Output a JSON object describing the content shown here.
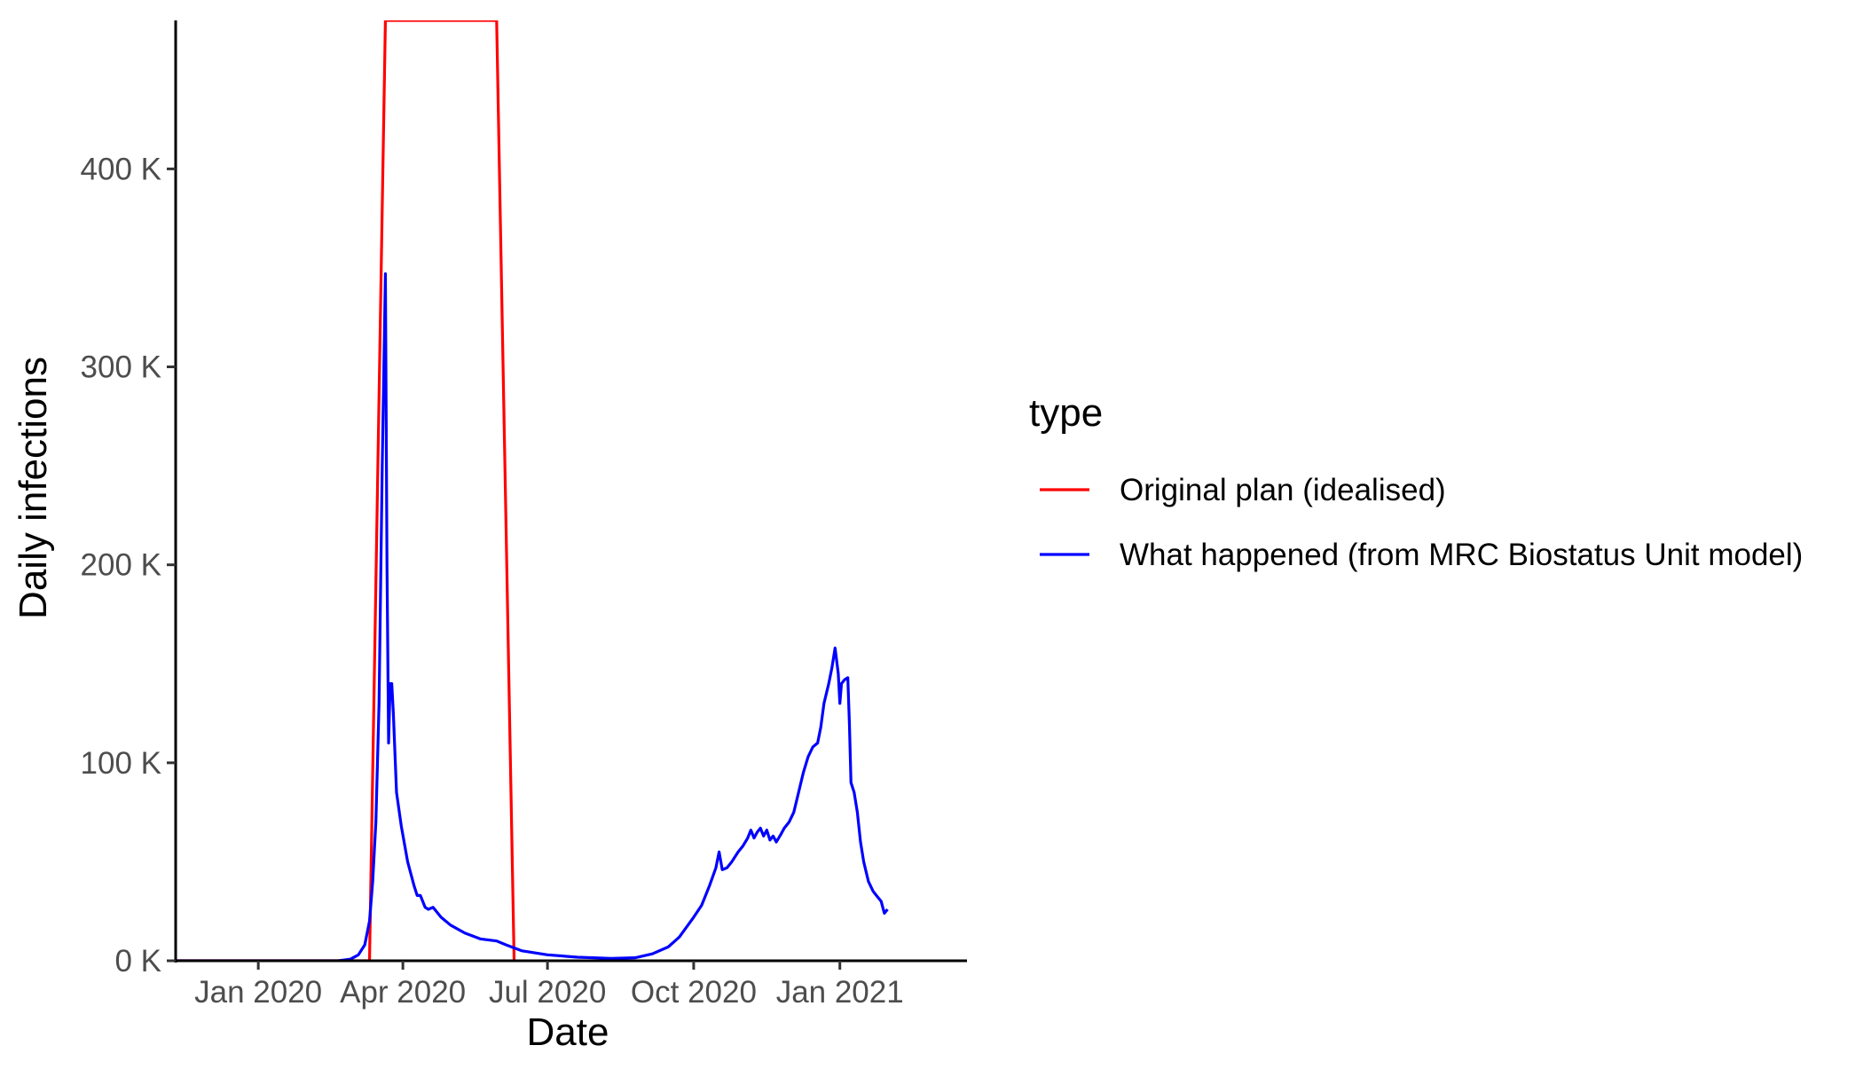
{
  "chart_data": {
    "type": "line",
    "xlabel": "Date",
    "ylabel": "Daily infections",
    "x_axis": {
      "kind": "date",
      "range": [
        "2019-11-10",
        "2021-03-22"
      ],
      "ticks": [
        {
          "date": "2020-01-01",
          "label": "Jan 2020"
        },
        {
          "date": "2020-04-01",
          "label": "Apr 2020"
        },
        {
          "date": "2020-07-01",
          "label": "Jul 2020"
        },
        {
          "date": "2020-10-01",
          "label": "Oct 2020"
        },
        {
          "date": "2021-01-01",
          "label": "Jan 2021"
        }
      ]
    },
    "y_axis": {
      "range": [
        0,
        475000
      ],
      "ticks": [
        {
          "value": 0,
          "label": "0 K"
        },
        {
          "value": 100000,
          "label": "100 K"
        },
        {
          "value": 200000,
          "label": "200 K"
        },
        {
          "value": 300000,
          "label": "300 K"
        },
        {
          "value": 400000,
          "label": "400 K"
        }
      ]
    },
    "grid": false,
    "legend": {
      "title": "type",
      "position": "right",
      "entries": [
        {
          "label": "Original plan (idealised)",
          "color": "#ff0000"
        },
        {
          "label": "What happened (from MRC Biostatus Unit model)",
          "color": "#0000ff"
        }
      ]
    },
    "series": [
      {
        "name": "Original plan (idealised)",
        "color": "#ff0000",
        "points": [
          [
            "2019-11-10",
            0
          ],
          [
            "2020-03-11",
            0
          ],
          [
            "2020-03-21",
            475000
          ],
          [
            "2020-05-30",
            475000
          ],
          [
            "2020-06-10",
            0
          ]
        ]
      },
      {
        "name": "What happened (from MRC Biostatus Unit model)",
        "color": "#0000ff",
        "points": [
          [
            "2019-11-10",
            0
          ],
          [
            "2020-02-20",
            0
          ],
          [
            "2020-02-28",
            800
          ],
          [
            "2020-03-04",
            3000
          ],
          [
            "2020-03-08",
            8000
          ],
          [
            "2020-03-11",
            20000
          ],
          [
            "2020-03-13",
            40000
          ],
          [
            "2020-03-15",
            70000
          ],
          [
            "2020-03-17",
            130000
          ],
          [
            "2020-03-19",
            250000
          ],
          [
            "2020-03-21",
            347000
          ],
          [
            "2020-03-22",
            200000
          ],
          [
            "2020-03-23",
            110000
          ],
          [
            "2020-03-24",
            140000
          ],
          [
            "2020-03-25",
            140000
          ],
          [
            "2020-03-26",
            125000
          ],
          [
            "2020-03-28",
            85000
          ],
          [
            "2020-03-31",
            68000
          ],
          [
            "2020-04-04",
            50000
          ],
          [
            "2020-04-08",
            38000
          ],
          [
            "2020-04-10",
            33000
          ],
          [
            "2020-04-12",
            33000
          ],
          [
            "2020-04-15",
            27000
          ],
          [
            "2020-04-17",
            26000
          ],
          [
            "2020-04-20",
            27000
          ],
          [
            "2020-04-25",
            22000
          ],
          [
            "2020-05-01",
            18000
          ],
          [
            "2020-05-10",
            14000
          ],
          [
            "2020-05-20",
            11000
          ],
          [
            "2020-05-30",
            10000
          ],
          [
            "2020-06-05",
            8000
          ],
          [
            "2020-06-15",
            5000
          ],
          [
            "2020-07-01",
            3000
          ],
          [
            "2020-07-20",
            1800
          ],
          [
            "2020-08-10",
            1200
          ],
          [
            "2020-08-25",
            1500
          ],
          [
            "2020-09-05",
            3500
          ],
          [
            "2020-09-15",
            7000
          ],
          [
            "2020-09-22",
            12000
          ],
          [
            "2020-10-01",
            22000
          ],
          [
            "2020-10-06",
            28000
          ],
          [
            "2020-10-11",
            38000
          ],
          [
            "2020-10-15",
            47000
          ],
          [
            "2020-10-17",
            55000
          ],
          [
            "2020-10-19",
            46000
          ],
          [
            "2020-10-22",
            47000
          ],
          [
            "2020-10-25",
            50000
          ],
          [
            "2020-10-29",
            55000
          ],
          [
            "2020-11-01",
            58000
          ],
          [
            "2020-11-04",
            62000
          ],
          [
            "2020-11-06",
            66000
          ],
          [
            "2020-11-08",
            62000
          ],
          [
            "2020-11-10",
            65000
          ],
          [
            "2020-11-12",
            67000
          ],
          [
            "2020-11-14",
            63000
          ],
          [
            "2020-11-16",
            66000
          ],
          [
            "2020-11-18",
            61000
          ],
          [
            "2020-11-20",
            63000
          ],
          [
            "2020-11-22",
            60000
          ],
          [
            "2020-11-25",
            64000
          ],
          [
            "2020-11-27",
            67000
          ],
          [
            "2020-11-30",
            70000
          ],
          [
            "2020-12-03",
            75000
          ],
          [
            "2020-12-06",
            85000
          ],
          [
            "2020-12-09",
            95000
          ],
          [
            "2020-12-12",
            103000
          ],
          [
            "2020-12-15",
            108000
          ],
          [
            "2020-12-18",
            110000
          ],
          [
            "2020-12-20",
            118000
          ],
          [
            "2020-12-22",
            130000
          ],
          [
            "2020-12-25",
            140000
          ],
          [
            "2020-12-27",
            148000
          ],
          [
            "2020-12-29",
            158000
          ],
          [
            "2020-12-31",
            145000
          ],
          [
            "2021-01-01",
            130000
          ],
          [
            "2021-01-02",
            140000
          ],
          [
            "2021-01-04",
            142000
          ],
          [
            "2021-01-06",
            143000
          ],
          [
            "2021-01-07",
            120000
          ],
          [
            "2021-01-08",
            90000
          ],
          [
            "2021-01-10",
            85000
          ],
          [
            "2021-01-12",
            75000
          ],
          [
            "2021-01-14",
            60000
          ],
          [
            "2021-01-16",
            50000
          ],
          [
            "2021-01-19",
            40000
          ],
          [
            "2021-01-22",
            35000
          ],
          [
            "2021-01-25",
            32000
          ],
          [
            "2021-01-27",
            30000
          ],
          [
            "2021-01-29",
            24000
          ],
          [
            "2021-01-31",
            26000
          ]
        ]
      }
    ]
  }
}
